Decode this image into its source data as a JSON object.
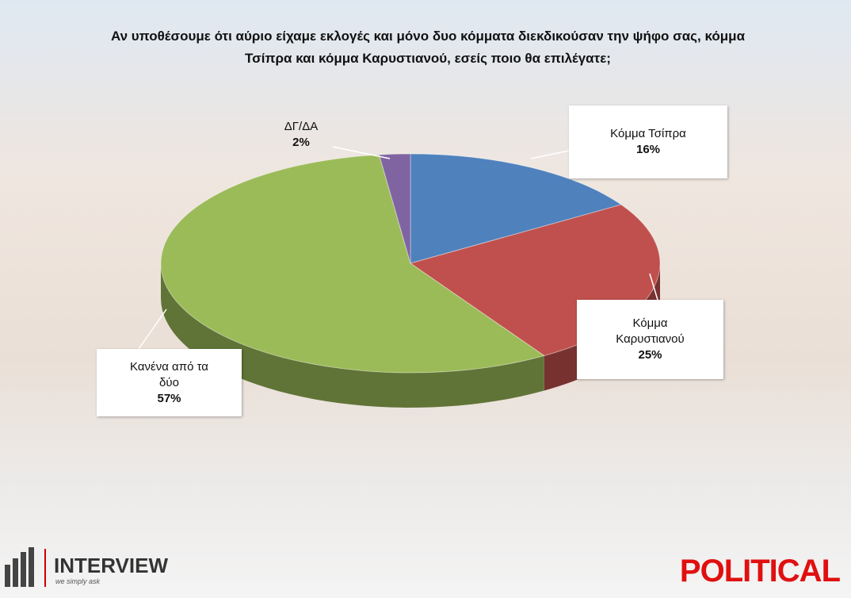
{
  "chart_data": {
    "type": "pie",
    "title": "Αν υποθέσουμε ότι αύριο είχαμε εκλογές και μόνο δυο κόμματα διεκδικούσαν την ψήφο σας, κόμμα Τσίπρα και κόμμα Καρυστιανού, εσείς ποιο θα επιλέγατε;",
    "categories": [
      "Κόμμα Τσίπρα",
      "Κόμμα Καρυστιανού",
      "Κανένα από τα δύο",
      "ΔΓ/ΔΑ"
    ],
    "values": [
      16,
      25,
      57,
      2
    ],
    "value_labels": [
      "16%",
      "25%",
      "57%",
      "2%"
    ],
    "colors": [
      "#4f81bd",
      "#c0504d",
      "#9bbb59",
      "#8064a2"
    ]
  },
  "logos": {
    "left": "INTERVIEW",
    "left_tagline": "we simply ask",
    "right": "POLITICAL"
  }
}
